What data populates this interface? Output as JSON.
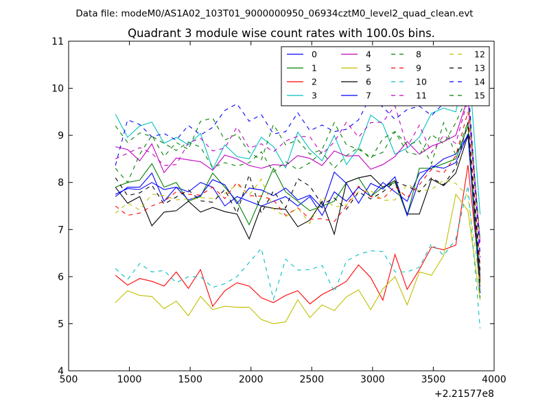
{
  "chart_data": {
    "type": "line",
    "suptitle": "Data file: modeM0/AS1A02_103T01_9000000950_06934cztM0_level2_quad_clean.evt",
    "title": "Quadrant 3 module wise count rates with 100.0s bins.",
    "xlabel": "",
    "ylabel": "",
    "x_offset_label": "+2.21577e8",
    "xlim": [
      500,
      4000
    ],
    "ylim": [
      4,
      11
    ],
    "xticks": [
      500,
      1000,
      1500,
      2000,
      2500,
      3000,
      3500,
      4000
    ],
    "yticks": [
      4,
      5,
      6,
      7,
      8,
      9,
      10,
      11
    ],
    "grid": false,
    "legend_position": "top-right",
    "x": [
      885,
      985,
      1085,
      1185,
      1285,
      1385,
      1485,
      1585,
      1685,
      1785,
      1885,
      1985,
      2085,
      2185,
      2285,
      2385,
      2485,
      2585,
      2685,
      2785,
      2885,
      2985,
      3085,
      3185,
      3285,
      3385,
      3485,
      3585,
      3685,
      3785,
      3885
    ],
    "series": [
      {
        "name": "0",
        "color": "#0000ff",
        "dash": "solid",
        "values": [
          7.7,
          7.9,
          7.9,
          8.2,
          7.6,
          7.9,
          7.8,
          8.0,
          7.9,
          7.5,
          7.7,
          7.6,
          7.5,
          7.6,
          7.7,
          7.5,
          7.7,
          7.3,
          7.8,
          7.6,
          7.9,
          7.7,
          8.0,
          7.8,
          7.6,
          8.2,
          8.3,
          8.5,
          8.6,
          9.0,
          6.0
        ]
      },
      {
        "name": "1",
        "color": "#008000",
        "dash": "solid",
        "values": [
          7.9,
          8.0,
          8.05,
          8.4,
          7.9,
          8.0,
          7.6,
          7.7,
          8.2,
          7.9,
          7.6,
          7.1,
          7.7,
          8.3,
          7.8,
          7.6,
          7.4,
          7.5,
          7.6,
          8.0,
          8.1,
          7.7,
          7.9,
          8.0,
          7.3,
          8.3,
          8.3,
          8.4,
          8.5,
          9.2,
          5.9
        ]
      },
      {
        "name": "2",
        "color": "#ff0000",
        "dash": "solid",
        "values": [
          6.03,
          5.82,
          5.96,
          5.9,
          5.8,
          6.1,
          5.75,
          6.15,
          5.37,
          5.7,
          5.87,
          5.8,
          5.55,
          5.45,
          5.6,
          5.7,
          5.42,
          5.62,
          5.75,
          5.9,
          6.25,
          5.98,
          5.5,
          6.47,
          5.73,
          6.15,
          6.63,
          6.57,
          6.67,
          8.37,
          5.93
        ]
      },
      {
        "name": "3",
        "color": "#00bfbf",
        "dash": "solid",
        "values": [
          9.45,
          8.96,
          9.2,
          9.28,
          8.83,
          8.96,
          8.8,
          9.04,
          8.28,
          8.8,
          8.55,
          8.5,
          8.96,
          8.76,
          8.31,
          9.07,
          8.7,
          8.46,
          9.0,
          8.38,
          8.73,
          9.43,
          9.24,
          8.6,
          8.73,
          8.96,
          9.47,
          9.58,
          9.5,
          10.75,
          7.32
        ]
      },
      {
        "name": "4",
        "color": "#bf00bf",
        "dash": "solid",
        "values": [
          8.76,
          8.7,
          8.46,
          8.82,
          8.21,
          8.52,
          8.48,
          8.44,
          8.26,
          8.58,
          8.5,
          8.36,
          8.3,
          8.38,
          8.36,
          8.57,
          8.51,
          8.36,
          8.67,
          8.56,
          8.57,
          8.28,
          8.38,
          8.55,
          8.87,
          8.6,
          8.77,
          8.87,
          9.0,
          9.8,
          6.73
        ]
      },
      {
        "name": "5",
        "color": "#bfbf00",
        "dash": "solid",
        "values": [
          5.45,
          5.7,
          5.6,
          5.58,
          5.32,
          5.48,
          5.17,
          5.58,
          5.3,
          5.37,
          5.35,
          5.35,
          5.09,
          5.0,
          5.04,
          5.51,
          5.13,
          5.4,
          5.28,
          5.57,
          5.72,
          5.3,
          5.74,
          6.0,
          5.4,
          6.1,
          6.03,
          6.45,
          7.75,
          7.4,
          5.5
        ]
      },
      {
        "name": "6",
        "color": "#000000",
        "dash": "solid",
        "values": [
          7.9,
          7.56,
          7.7,
          7.08,
          7.37,
          7.4,
          7.6,
          7.37,
          7.47,
          7.38,
          7.33,
          6.8,
          7.5,
          7.45,
          7.43,
          7.06,
          7.2,
          7.6,
          6.9,
          8.0,
          8.1,
          8.15,
          7.9,
          8.04,
          7.33,
          7.33,
          8.07,
          7.93,
          8.2,
          9.0,
          5.8
        ]
      },
      {
        "name": "7",
        "color": "#0000ff",
        "dash": "solid",
        "values": [
          7.75,
          7.87,
          7.85,
          8.0,
          7.85,
          7.9,
          7.63,
          7.72,
          8.06,
          7.95,
          7.55,
          7.88,
          7.84,
          7.72,
          7.88,
          7.63,
          7.73,
          7.46,
          8.22,
          7.98,
          7.56,
          7.98,
          7.86,
          8.12,
          7.3,
          8.05,
          8.35,
          8.3,
          8.42,
          9.03,
          5.65
        ]
      },
      {
        "name": "8",
        "color": "#008000",
        "dash": "dashed",
        "values": [
          8.3,
          8.0,
          8.6,
          9.0,
          8.55,
          8.85,
          8.7,
          9.3,
          9.37,
          8.9,
          9.03,
          8.64,
          8.48,
          9.23,
          8.8,
          8.9,
          8.6,
          8.7,
          9.27,
          8.8,
          8.7,
          8.54,
          8.64,
          9.08,
          8.8,
          8.88,
          8.4,
          9.27,
          8.57,
          9.28,
          5.55
        ]
      },
      {
        "name": "9",
        "color": "#ff0000",
        "dash": "dashed",
        "values": [
          7.5,
          7.3,
          7.35,
          7.5,
          7.6,
          7.8,
          7.75,
          7.73,
          7.9,
          7.66,
          8.0,
          7.72,
          7.71,
          7.63,
          7.3,
          7.46,
          7.22,
          7.23,
          7.17,
          7.5,
          7.92,
          7.7,
          7.65,
          7.92,
          7.68,
          7.95,
          8.28,
          8.2,
          8.57,
          9.5,
          6.23
        ]
      },
      {
        "name": "10",
        "color": "#00bfbf",
        "dash": "dashed",
        "values": [
          6.17,
          5.94,
          6.28,
          6.1,
          6.13,
          5.87,
          6.0,
          6.0,
          5.77,
          5.85,
          6.0,
          6.3,
          6.6,
          5.52,
          6.37,
          6.14,
          6.15,
          6.24,
          5.67,
          6.33,
          6.47,
          6.55,
          6.53,
          6.1,
          6.1,
          6.2,
          6.7,
          6.45,
          6.8,
          7.93,
          4.9
        ]
      },
      {
        "name": "11",
        "color": "#bf00bf",
        "dash": "dashed",
        "values": [
          8.5,
          8.62,
          8.74,
          8.62,
          8.36,
          8.38,
          8.84,
          8.94,
          8.67,
          8.73,
          9.18,
          8.73,
          8.82,
          8.65,
          8.88,
          8.98,
          8.97,
          8.6,
          8.86,
          9.28,
          8.96,
          9.27,
          9.28,
          9.63,
          8.75,
          9.22,
          8.63,
          9.0,
          8.83,
          9.76,
          6.4
        ]
      },
      {
        "name": "12",
        "color": "#bfbf00",
        "dash": "dashed",
        "values": [
          7.35,
          7.56,
          7.42,
          7.75,
          7.72,
          7.63,
          7.65,
          7.68,
          7.66,
          7.76,
          7.96,
          7.73,
          8.07,
          7.44,
          7.27,
          7.46,
          7.13,
          7.7,
          7.48,
          7.52,
          7.8,
          7.83,
          7.62,
          7.63,
          7.96,
          7.82,
          7.85,
          8.05,
          7.98,
          7.7,
          5.82
        ]
      },
      {
        "name": "13",
        "color": "#000000",
        "dash": "dashed",
        "values": [
          8.1,
          7.72,
          7.78,
          7.94,
          7.54,
          7.69,
          7.84,
          7.61,
          7.58,
          7.85,
          7.35,
          8.16,
          7.35,
          7.82,
          7.46,
          8.08,
          7.92,
          7.53,
          7.67,
          7.43,
          7.8,
          7.65,
          7.8,
          8.02,
          7.92,
          7.8,
          8.1,
          7.95,
          8.32,
          9.28,
          6.12
        ]
      },
      {
        "name": "14",
        "color": "#0000ff",
        "dash": "dashed",
        "values": [
          8.36,
          9.33,
          9.23,
          8.97,
          9.04,
          8.9,
          9.21,
          9.01,
          9.17,
          9.53,
          9.67,
          9.3,
          9.44,
          9.03,
          9.08,
          9.48,
          9.1,
          9.22,
          9.08,
          9.13,
          9.33,
          9.83,
          9.6,
          9.34,
          9.55,
          9.62,
          9.42,
          9.68,
          9.82,
          10.12,
          6.48
        ]
      },
      {
        "name": "15",
        "color": "#008000",
        "dash": "dashed",
        "values": [
          9.2,
          8.85,
          9.05,
          8.98,
          8.83,
          8.68,
          8.86,
          8.75,
          8.32,
          8.42,
          8.35,
          8.42,
          8.65,
          8.22,
          8.44,
          8.27,
          8.42,
          8.65,
          8.3,
          8.57,
          8.74,
          8.5,
          8.93,
          9.08,
          8.64,
          8.58,
          9.02,
          8.82,
          9.27,
          9.85,
          6.78
        ]
      }
    ]
  }
}
